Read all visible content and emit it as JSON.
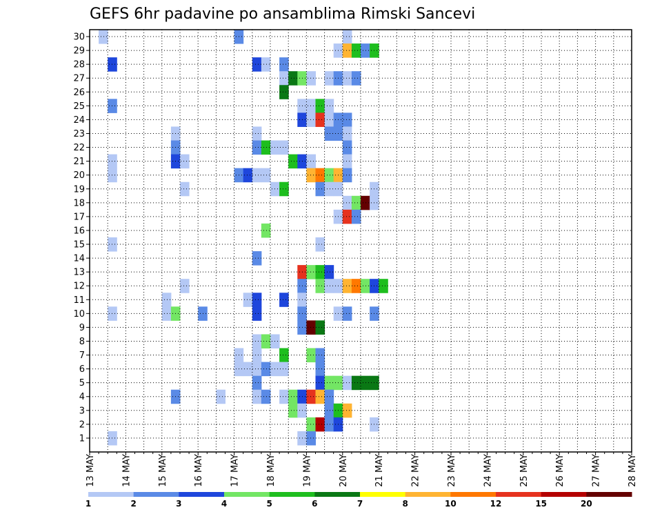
{
  "chart_data": {
    "type": "heatmap",
    "title": "GEFS 6hr padavine po ansamblima Rimski Sancevi",
    "xlabel": "",
    "ylabel": "",
    "x_tick_labels": [
      "13 MAY",
      "14 MAY",
      "15 MAY",
      "16 MAY",
      "17 MAY",
      "18 MAY",
      "19 MAY",
      "20 MAY",
      "21 MAY",
      "22 MAY",
      "23 MAY",
      "24 MAY",
      "25 MAY",
      "26 MAY",
      "27 MAY",
      "28 MAY"
    ],
    "x_range": [
      "13 MAY 00Z",
      "28 MAY 00Z"
    ],
    "x_step_hours": 6,
    "y_tick_labels": [
      "1",
      "2",
      "3",
      "4",
      "5",
      "6",
      "7",
      "8",
      "9",
      "10",
      "11",
      "12",
      "13",
      "14",
      "15",
      "16",
      "17",
      "18",
      "19",
      "20",
      "21",
      "22",
      "23",
      "24",
      "25",
      "26",
      "27",
      "28",
      "29",
      "30"
    ],
    "y_range": [
      0,
      30
    ],
    "grid": "dotted",
    "colorbar": {
      "position": "bottom",
      "levels": [
        "1",
        "2",
        "3",
        "4",
        "5",
        "6",
        "7",
        "8",
        "10",
        "12",
        "15",
        "20"
      ],
      "colors": [
        "#b4c8f5",
        "#5a8ae6",
        "#1e46dc",
        "#73e664",
        "#1ebe1e",
        "#0a7814",
        "#ffff00",
        "#ffb432",
        "#ff7800",
        "#e6321e",
        "#b40000",
        "#640000"
      ]
    },
    "cells_note": "each cell: [member, step index from 13 MAY 00Z in 6h steps, color class 0-11]",
    "cells": [
      [
        30,
        1,
        0
      ],
      [
        30,
        16,
        1
      ],
      [
        30,
        28,
        0
      ],
      [
        29,
        27,
        0
      ],
      [
        29,
        28,
        7
      ],
      [
        29,
        29,
        4
      ],
      [
        29,
        30,
        1
      ],
      [
        29,
        31,
        4
      ],
      [
        28,
        2,
        2
      ],
      [
        28,
        18,
        2
      ],
      [
        28,
        19,
        0
      ],
      [
        28,
        21,
        1
      ],
      [
        27,
        21,
        0
      ],
      [
        27,
        22,
        5
      ],
      [
        27,
        23,
        3
      ],
      [
        27,
        24,
        0
      ],
      [
        27,
        26,
        0
      ],
      [
        27,
        27,
        1
      ],
      [
        27,
        28,
        0
      ],
      [
        27,
        29,
        1
      ],
      [
        26,
        21,
        5
      ],
      [
        25,
        2,
        1
      ],
      [
        25,
        23,
        0
      ],
      [
        25,
        24,
        0
      ],
      [
        25,
        25,
        4
      ],
      [
        25,
        26,
        0
      ],
      [
        24,
        23,
        2
      ],
      [
        24,
        24,
        0
      ],
      [
        24,
        25,
        9
      ],
      [
        24,
        26,
        0
      ],
      [
        24,
        27,
        1
      ],
      [
        24,
        28,
        1
      ],
      [
        23,
        9,
        0
      ],
      [
        23,
        18,
        0
      ],
      [
        23,
        26,
        1
      ],
      [
        23,
        27,
        1
      ],
      [
        23,
        28,
        0
      ],
      [
        22,
        9,
        1
      ],
      [
        22,
        18,
        1
      ],
      [
        22,
        19,
        4
      ],
      [
        22,
        20,
        0
      ],
      [
        22,
        21,
        0
      ],
      [
        22,
        28,
        1
      ],
      [
        21,
        2,
        0
      ],
      [
        21,
        9,
        2
      ],
      [
        21,
        10,
        0
      ],
      [
        21,
        22,
        4
      ],
      [
        21,
        23,
        2
      ],
      [
        21,
        24,
        0
      ],
      [
        21,
        28,
        0
      ],
      [
        20,
        2,
        0
      ],
      [
        20,
        16,
        1
      ],
      [
        20,
        17,
        2
      ],
      [
        20,
        18,
        0
      ],
      [
        20,
        19,
        0
      ],
      [
        20,
        24,
        7
      ],
      [
        20,
        25,
        8
      ],
      [
        20,
        26,
        3
      ],
      [
        20,
        27,
        7
      ],
      [
        20,
        28,
        1
      ],
      [
        19,
        10,
        0
      ],
      [
        19,
        20,
        0
      ],
      [
        19,
        21,
        4
      ],
      [
        19,
        25,
        1
      ],
      [
        19,
        26,
        0
      ],
      [
        19,
        27,
        0
      ],
      [
        19,
        31,
        0
      ],
      [
        18,
        28,
        0
      ],
      [
        18,
        29,
        3
      ],
      [
        18,
        30,
        11
      ],
      [
        18,
        31,
        0
      ],
      [
        17,
        27,
        0
      ],
      [
        17,
        28,
        9
      ],
      [
        17,
        29,
        1
      ],
      [
        16,
        19,
        3
      ],
      [
        15,
        2,
        0
      ],
      [
        15,
        25,
        0
      ],
      [
        14,
        18,
        1
      ],
      [
        13,
        23,
        9
      ],
      [
        13,
        24,
        3
      ],
      [
        13,
        25,
        4
      ],
      [
        13,
        26,
        2
      ],
      [
        12,
        10,
        0
      ],
      [
        12,
        23,
        1
      ],
      [
        12,
        25,
        3
      ],
      [
        12,
        26,
        0
      ],
      [
        12,
        27,
        0
      ],
      [
        12,
        28,
        7
      ],
      [
        12,
        29,
        8
      ],
      [
        12,
        30,
        3
      ],
      [
        12,
        31,
        2
      ],
      [
        12,
        32,
        4
      ],
      [
        11,
        8,
        0
      ],
      [
        11,
        17,
        0
      ],
      [
        11,
        18,
        2
      ],
      [
        11,
        21,
        2
      ],
      [
        11,
        23,
        0
      ],
      [
        10,
        2,
        0
      ],
      [
        10,
        8,
        0
      ],
      [
        10,
        9,
        3
      ],
      [
        10,
        12,
        1
      ],
      [
        10,
        18,
        2
      ],
      [
        10,
        23,
        1
      ],
      [
        10,
        27,
        0
      ],
      [
        10,
        28,
        1
      ],
      [
        10,
        31,
        1
      ],
      [
        9,
        23,
        1
      ],
      [
        9,
        24,
        11
      ],
      [
        9,
        25,
        5
      ],
      [
        8,
        18,
        0
      ],
      [
        8,
        19,
        3
      ],
      [
        8,
        20,
        0
      ],
      [
        7,
        16,
        0
      ],
      [
        7,
        18,
        0
      ],
      [
        7,
        21,
        4
      ],
      [
        7,
        24,
        3
      ],
      [
        7,
        25,
        1
      ],
      [
        6,
        16,
        0
      ],
      [
        6,
        17,
        0
      ],
      [
        6,
        18,
        0
      ],
      [
        6,
        19,
        1
      ],
      [
        6,
        20,
        0
      ],
      [
        6,
        21,
        0
      ],
      [
        6,
        25,
        1
      ],
      [
        5,
        18,
        1
      ],
      [
        5,
        25,
        2
      ],
      [
        5,
        26,
        3
      ],
      [
        5,
        27,
        3
      ],
      [
        5,
        28,
        0
      ],
      [
        5,
        29,
        5
      ],
      [
        5,
        30,
        5
      ],
      [
        5,
        31,
        5
      ],
      [
        4,
        9,
        1
      ],
      [
        4,
        14,
        0
      ],
      [
        4,
        18,
        0
      ],
      [
        4,
        19,
        1
      ],
      [
        4,
        21,
        0
      ],
      [
        4,
        22,
        3
      ],
      [
        4,
        23,
        2
      ],
      [
        4,
        24,
        9
      ],
      [
        4,
        25,
        7
      ],
      [
        4,
        26,
        1
      ],
      [
        3,
        22,
        3
      ],
      [
        3,
        23,
        0
      ],
      [
        3,
        26,
        1
      ],
      [
        3,
        27,
        4
      ],
      [
        3,
        28,
        7
      ],
      [
        2,
        24,
        3
      ],
      [
        2,
        25,
        10
      ],
      [
        2,
        26,
        1
      ],
      [
        2,
        27,
        2
      ],
      [
        2,
        31,
        0
      ],
      [
        1,
        2,
        0
      ],
      [
        1,
        23,
        0
      ],
      [
        1,
        24,
        1
      ]
    ]
  }
}
